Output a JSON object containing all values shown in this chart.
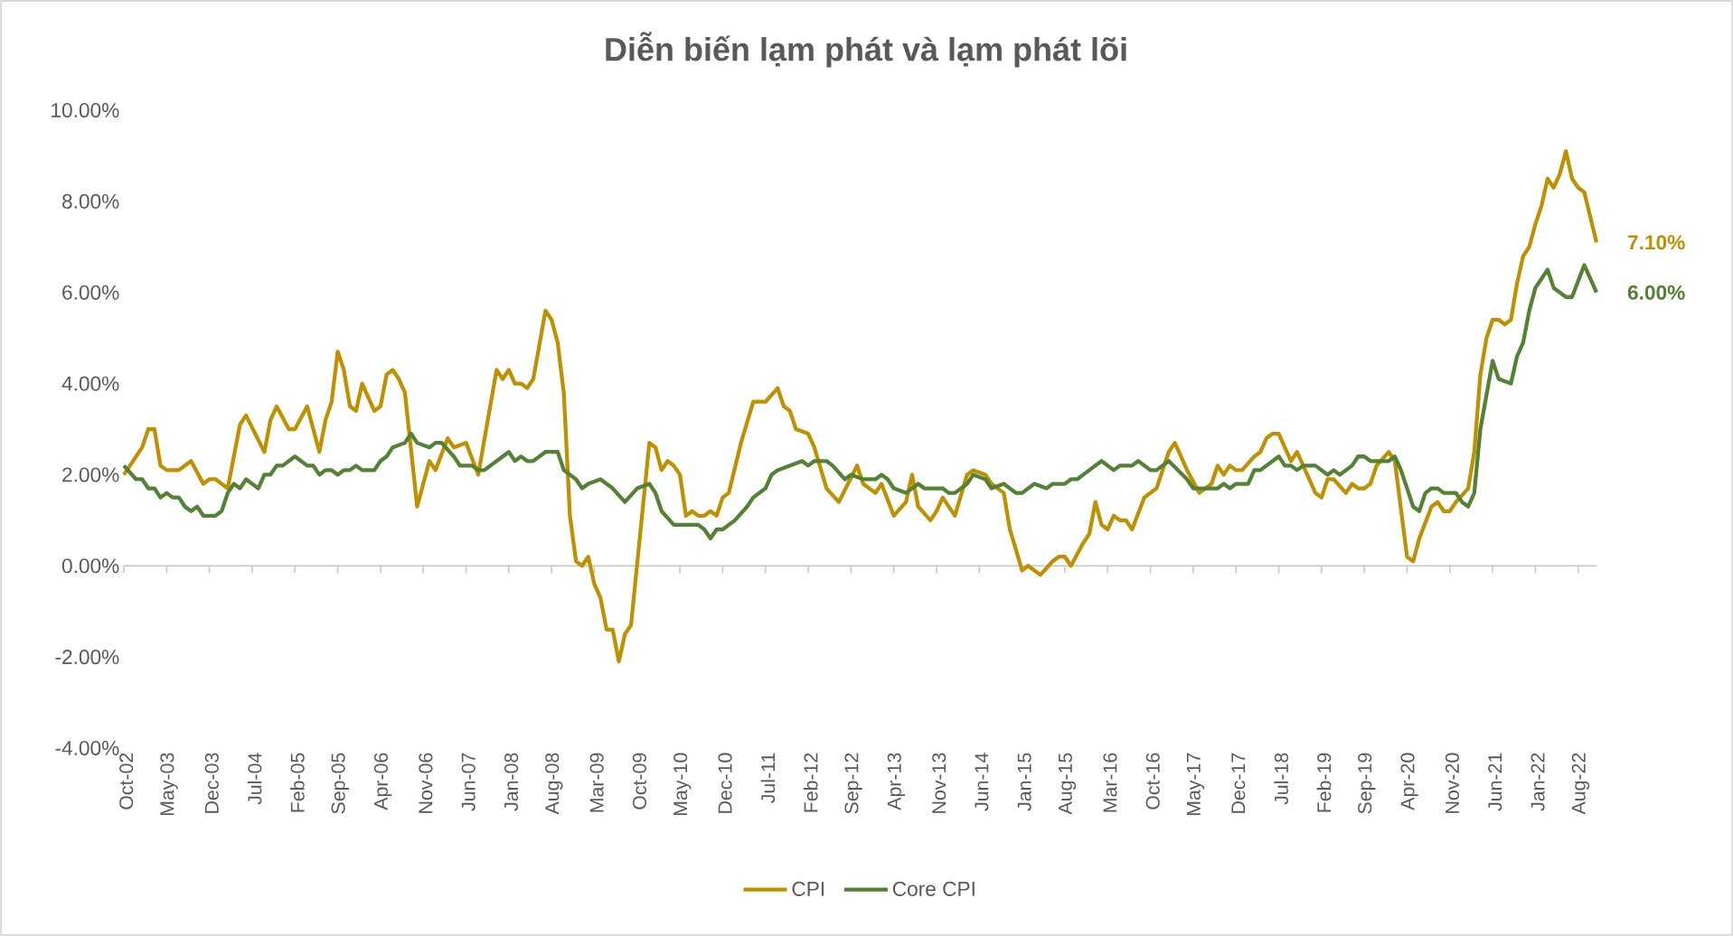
{
  "chart_data": {
    "type": "line",
    "title": "Diễn biến lạm phát và lạm phát lõi",
    "xlim": [
      "2002-10",
      "2022-11"
    ],
    "xticks": [
      {
        "value": "2002-10",
        "label": "Oct-02"
      },
      {
        "value": "2003-05",
        "label": "May-03"
      },
      {
        "value": "2003-12",
        "label": "Dec-03"
      },
      {
        "value": "2004-07",
        "label": "Jul-04"
      },
      {
        "value": "2005-02",
        "label": "Feb-05"
      },
      {
        "value": "2005-09",
        "label": "Sep-05"
      },
      {
        "value": "2006-04",
        "label": "Apr-06"
      },
      {
        "value": "2006-11",
        "label": "Nov-06"
      },
      {
        "value": "2007-06",
        "label": "Jun-07"
      },
      {
        "value": "2008-01",
        "label": "Jan-08"
      },
      {
        "value": "2008-08",
        "label": "Aug-08"
      },
      {
        "value": "2009-03",
        "label": "Mar-09"
      },
      {
        "value": "2009-10",
        "label": "Oct-09"
      },
      {
        "value": "2010-05",
        "label": "May-10"
      },
      {
        "value": "2010-12",
        "label": "Dec-10"
      },
      {
        "value": "2011-07",
        "label": "Jul-11"
      },
      {
        "value": "2012-02",
        "label": "Feb-12"
      },
      {
        "value": "2012-09",
        "label": "Sep-12"
      },
      {
        "value": "2013-04",
        "label": "Apr-13"
      },
      {
        "value": "2013-11",
        "label": "Nov-13"
      },
      {
        "value": "2014-06",
        "label": "Jun-14"
      },
      {
        "value": "2015-01",
        "label": "Jan-15"
      },
      {
        "value": "2015-08",
        "label": "Aug-15"
      },
      {
        "value": "2016-03",
        "label": "Mar-16"
      },
      {
        "value": "2016-10",
        "label": "Oct-16"
      },
      {
        "value": "2017-05",
        "label": "May-17"
      },
      {
        "value": "2017-12",
        "label": "Dec-17"
      },
      {
        "value": "2018-07",
        "label": "Jul-18"
      },
      {
        "value": "2019-02",
        "label": "Feb-19"
      },
      {
        "value": "2019-09",
        "label": "Sep-19"
      },
      {
        "value": "2020-04",
        "label": "Apr-20"
      },
      {
        "value": "2020-11",
        "label": "Nov-20"
      },
      {
        "value": "2021-06",
        "label": "Jun-21"
      },
      {
        "value": "2022-01",
        "label": "Jan-22"
      },
      {
        "value": "2022-08",
        "label": "Aug-22"
      }
    ],
    "ylim": [
      -4,
      10
    ],
    "yticks": [
      {
        "value": -4,
        "label": "-4.00%"
      },
      {
        "value": -2,
        "label": "-2.00%"
      },
      {
        "value": 0,
        "label": "0.00%"
      },
      {
        "value": 2,
        "label": "2.00%"
      },
      {
        "value": 4,
        "label": "4.00%"
      },
      {
        "value": 6,
        "label": "6.00%"
      },
      {
        "value": 8,
        "label": "8.00%"
      },
      {
        "value": 10,
        "label": "10.00%"
      }
    ],
    "legend": "bottom",
    "series": [
      {
        "name": "CPI",
        "color": "#bf9000",
        "x": [
          "2002-10",
          "2002-12",
          "2003-01",
          "2003-02",
          "2003-03",
          "2003-04",
          "2003-05",
          "2003-07",
          "2003-09",
          "2003-11",
          "2003-12",
          "2004-01",
          "2004-03",
          "2004-05",
          "2004-06",
          "2004-09",
          "2004-10",
          "2004-11",
          "2005-01",
          "2005-02",
          "2005-04",
          "2005-06",
          "2005-07",
          "2005-08",
          "2005-09",
          "2005-10",
          "2005-11",
          "2005-12",
          "2006-01",
          "2006-03",
          "2006-04",
          "2006-05",
          "2006-06",
          "2006-07",
          "2006-08",
          "2006-10",
          "2006-12",
          "2007-01",
          "2007-03",
          "2007-04",
          "2007-06",
          "2007-08",
          "2007-11",
          "2007-12",
          "2008-01",
          "2008-02",
          "2008-03",
          "2008-04",
          "2008-05",
          "2008-07",
          "2008-08",
          "2008-09",
          "2008-10",
          "2008-11",
          "2008-12",
          "2009-01",
          "2009-02",
          "2009-03",
          "2009-04",
          "2009-05",
          "2009-06",
          "2009-07",
          "2009-08",
          "2009-09",
          "2009-12",
          "2010-01",
          "2010-02",
          "2010-03",
          "2010-04",
          "2010-05",
          "2010-06",
          "2010-07",
          "2010-08",
          "2010-09",
          "2010-10",
          "2010-11",
          "2010-12",
          "2011-01",
          "2011-03",
          "2011-05",
          "2011-07",
          "2011-09",
          "2011-10",
          "2011-11",
          "2011-12",
          "2012-02",
          "2012-03",
          "2012-05",
          "2012-07",
          "2012-10",
          "2012-11",
          "2013-01",
          "2013-02",
          "2013-04",
          "2013-06",
          "2013-07",
          "2013-08",
          "2013-10",
          "2013-11",
          "2013-12",
          "2014-02",
          "2014-04",
          "2014-05",
          "2014-07",
          "2014-08",
          "2014-10",
          "2014-11",
          "2015-01",
          "2015-02",
          "2015-04",
          "2015-06",
          "2015-07",
          "2015-08",
          "2015-09",
          "2015-11",
          "2015-12",
          "2016-01",
          "2016-02",
          "2016-03",
          "2016-04",
          "2016-05",
          "2016-06",
          "2016-07",
          "2016-09",
          "2016-11",
          "2017-01",
          "2017-02",
          "2017-04",
          "2017-06",
          "2017-08",
          "2017-09",
          "2017-10",
          "2017-11",
          "2017-12",
          "2018-01",
          "2018-03",
          "2018-04",
          "2018-05",
          "2018-06",
          "2018-07",
          "2018-09",
          "2018-10",
          "2019-01",
          "2019-02",
          "2019-03",
          "2019-04",
          "2019-06",
          "2019-07",
          "2019-08",
          "2019-09",
          "2019-10",
          "2019-11",
          "2020-01",
          "2020-02",
          "2020-04",
          "2020-05",
          "2020-06",
          "2020-08",
          "2020-09",
          "2020-10",
          "2020-11",
          "2020-12",
          "2021-02",
          "2021-03",
          "2021-04",
          "2021-05",
          "2021-06",
          "2021-07",
          "2021-08",
          "2021-09",
          "2021-10",
          "2021-11",
          "2021-12",
          "2022-01",
          "2022-02",
          "2022-03",
          "2022-04",
          "2022-05",
          "2022-06",
          "2022-07",
          "2022-08",
          "2022-09",
          "2022-11"
        ],
        "values": [
          2.0,
          2.4,
          2.6,
          3.0,
          3.0,
          2.2,
          2.1,
          2.1,
          2.3,
          1.8,
          1.9,
          1.9,
          1.7,
          3.1,
          3.3,
          2.5,
          3.2,
          3.5,
          3.0,
          3.0,
          3.5,
          2.5,
          3.2,
          3.6,
          4.7,
          4.3,
          3.5,
          3.4,
          4.0,
          3.4,
          3.5,
          4.2,
          4.3,
          4.1,
          3.8,
          1.3,
          2.3,
          2.1,
          2.8,
          2.6,
          2.7,
          2.0,
          4.3,
          4.1,
          4.3,
          4.0,
          4.0,
          3.9,
          4.1,
          5.6,
          5.4,
          4.9,
          3.8,
          1.1,
          0.1,
          0.0,
          0.2,
          -0.4,
          -0.7,
          -1.4,
          -1.4,
          -2.1,
          -1.5,
          -1.3,
          2.7,
          2.6,
          2.1,
          2.3,
          2.2,
          2.0,
          1.1,
          1.2,
          1.1,
          1.1,
          1.2,
          1.1,
          1.5,
          1.6,
          2.7,
          3.6,
          3.6,
          3.9,
          3.5,
          3.4,
          3.0,
          2.9,
          2.6,
          1.7,
          1.4,
          2.2,
          1.8,
          1.6,
          1.8,
          1.1,
          1.4,
          2.0,
          1.3,
          1.0,
          1.2,
          1.5,
          1.1,
          2.0,
          2.1,
          2.0,
          1.8,
          1.6,
          0.8,
          -0.1,
          0.0,
          -0.2,
          0.1,
          0.2,
          0.2,
          0.0,
          0.5,
          0.7,
          1.4,
          0.9,
          0.8,
          1.1,
          1.0,
          1.0,
          0.8,
          1.5,
          1.7,
          2.5,
          2.7,
          2.1,
          1.6,
          1.8,
          2.2,
          2.0,
          2.2,
          2.1,
          2.1,
          2.4,
          2.5,
          2.8,
          2.9,
          2.9,
          2.3,
          2.5,
          1.6,
          1.5,
          1.9,
          1.9,
          1.6,
          1.8,
          1.7,
          1.7,
          1.8,
          2.2,
          2.5,
          2.3,
          0.2,
          0.1,
          0.6,
          1.3,
          1.4,
          1.2,
          1.2,
          1.4,
          1.7,
          2.5,
          4.2,
          5.0,
          5.4,
          5.4,
          5.3,
          5.4,
          6.2,
          6.8,
          7.0,
          7.5,
          7.9,
          8.5,
          8.3,
          8.6,
          9.1,
          8.5,
          8.3,
          8.2,
          7.1
        ]
      },
      {
        "name": "Core CPI",
        "color": "#548235",
        "x": [
          "2002-10",
          "2002-12",
          "2003-01",
          "2003-02",
          "2003-03",
          "2003-04",
          "2003-05",
          "2003-06",
          "2003-07",
          "2003-08",
          "2003-09",
          "2003-10",
          "2003-11",
          "2004-01",
          "2004-02",
          "2004-03",
          "2004-04",
          "2004-05",
          "2004-06",
          "2004-08",
          "2004-09",
          "2004-10",
          "2004-11",
          "2004-12",
          "2005-02",
          "2005-04",
          "2005-05",
          "2005-06",
          "2005-07",
          "2005-08",
          "2005-09",
          "2005-10",
          "2005-11",
          "2005-12",
          "2006-01",
          "2006-03",
          "2006-04",
          "2006-05",
          "2006-06",
          "2006-08",
          "2006-09",
          "2006-10",
          "2006-12",
          "2007-01",
          "2007-02",
          "2007-04",
          "2007-05",
          "2007-07",
          "2007-08",
          "2007-09",
          "2007-12",
          "2008-01",
          "2008-02",
          "2008-03",
          "2008-04",
          "2008-05",
          "2008-07",
          "2008-09",
          "2008-10",
          "2008-12",
          "2009-01",
          "2009-02",
          "2009-04",
          "2009-05",
          "2009-06",
          "2009-08",
          "2009-10",
          "2009-12",
          "2010-01",
          "2010-02",
          "2010-04",
          "2010-08",
          "2010-09",
          "2010-10",
          "2010-11",
          "2010-12",
          "2011-02",
          "2011-04",
          "2011-05",
          "2011-07",
          "2011-08",
          "2011-09",
          "2011-11",
          "2012-01",
          "2012-02",
          "2012-03",
          "2012-05",
          "2012-06",
          "2012-08",
          "2012-09",
          "2012-11",
          "2013-01",
          "2013-02",
          "2013-03",
          "2013-04",
          "2013-06",
          "2013-08",
          "2013-09",
          "2013-12",
          "2014-01",
          "2014-02",
          "2014-04",
          "2014-05",
          "2014-07",
          "2014-08",
          "2014-10",
          "2014-12",
          "2015-01",
          "2015-03",
          "2015-05",
          "2015-06",
          "2015-08",
          "2015-09",
          "2015-10",
          "2015-12",
          "2016-02",
          "2016-04",
          "2016-05",
          "2016-07",
          "2016-08",
          "2016-10",
          "2016-11",
          "2017-01",
          "2017-04",
          "2017-05",
          "2017-09",
          "2017-10",
          "2017-11",
          "2017-12",
          "2018-02",
          "2018-03",
          "2018-04",
          "2018-07",
          "2018-08",
          "2018-09",
          "2018-10",
          "2018-11",
          "2019-01",
          "2019-03",
          "2019-04",
          "2019-05",
          "2019-07",
          "2019-08",
          "2019-09",
          "2019-10",
          "2020-01",
          "2020-02",
          "2020-03",
          "2020-05",
          "2020-06",
          "2020-07",
          "2020-08",
          "2020-09",
          "2020-10",
          "2020-12",
          "2021-01",
          "2021-02",
          "2021-03",
          "2021-04",
          "2021-06",
          "2021-07",
          "2021-09",
          "2021-10",
          "2021-11",
          "2021-12",
          "2022-01",
          "2022-03",
          "2022-04",
          "2022-06",
          "2022-07",
          "2022-09",
          "2022-11"
        ],
        "values": [
          2.2,
          1.9,
          1.9,
          1.7,
          1.7,
          1.5,
          1.6,
          1.5,
          1.5,
          1.3,
          1.2,
          1.3,
          1.1,
          1.1,
          1.2,
          1.6,
          1.8,
          1.7,
          1.9,
          1.7,
          2.0,
          2.0,
          2.2,
          2.2,
          2.4,
          2.2,
          2.2,
          2.0,
          2.1,
          2.1,
          2.0,
          2.1,
          2.1,
          2.2,
          2.1,
          2.1,
          2.3,
          2.4,
          2.6,
          2.7,
          2.9,
          2.7,
          2.6,
          2.7,
          2.7,
          2.4,
          2.2,
          2.2,
          2.1,
          2.1,
          2.4,
          2.5,
          2.3,
          2.4,
          2.3,
          2.3,
          2.5,
          2.5,
          2.1,
          1.9,
          1.7,
          1.8,
          1.9,
          1.8,
          1.7,
          1.4,
          1.7,
          1.8,
          1.6,
          1.2,
          0.9,
          0.9,
          0.8,
          0.6,
          0.8,
          0.8,
          1.0,
          1.3,
          1.5,
          1.7,
          2.0,
          2.1,
          2.2,
          2.3,
          2.2,
          2.3,
          2.3,
          2.2,
          1.9,
          2.0,
          1.9,
          1.9,
          2.0,
          1.9,
          1.7,
          1.6,
          1.8,
          1.7,
          1.7,
          1.6,
          1.6,
          1.8,
          2.0,
          1.9,
          1.7,
          1.8,
          1.6,
          1.6,
          1.8,
          1.7,
          1.8,
          1.8,
          1.9,
          1.9,
          2.1,
          2.3,
          2.1,
          2.2,
          2.2,
          2.3,
          2.1,
          2.1,
          2.3,
          1.9,
          1.7,
          1.7,
          1.8,
          1.7,
          1.8,
          1.8,
          2.1,
          2.1,
          2.4,
          2.2,
          2.2,
          2.1,
          2.2,
          2.2,
          2.0,
          2.1,
          2.0,
          2.2,
          2.4,
          2.4,
          2.3,
          2.3,
          2.4,
          2.1,
          1.3,
          1.2,
          1.6,
          1.7,
          1.7,
          1.6,
          1.6,
          1.4,
          1.3,
          1.6,
          3.0,
          4.5,
          4.1,
          4.0,
          4.6,
          4.9,
          5.6,
          6.1,
          6.5,
          6.1,
          5.9,
          5.9,
          6.6,
          6.0
        ]
      }
    ],
    "annotations": [
      {
        "text": "7.10%",
        "x": "2022-11",
        "y": 7.1
      },
      {
        "text": "6.00%",
        "x": "2022-11",
        "y": 6.0
      }
    ]
  }
}
